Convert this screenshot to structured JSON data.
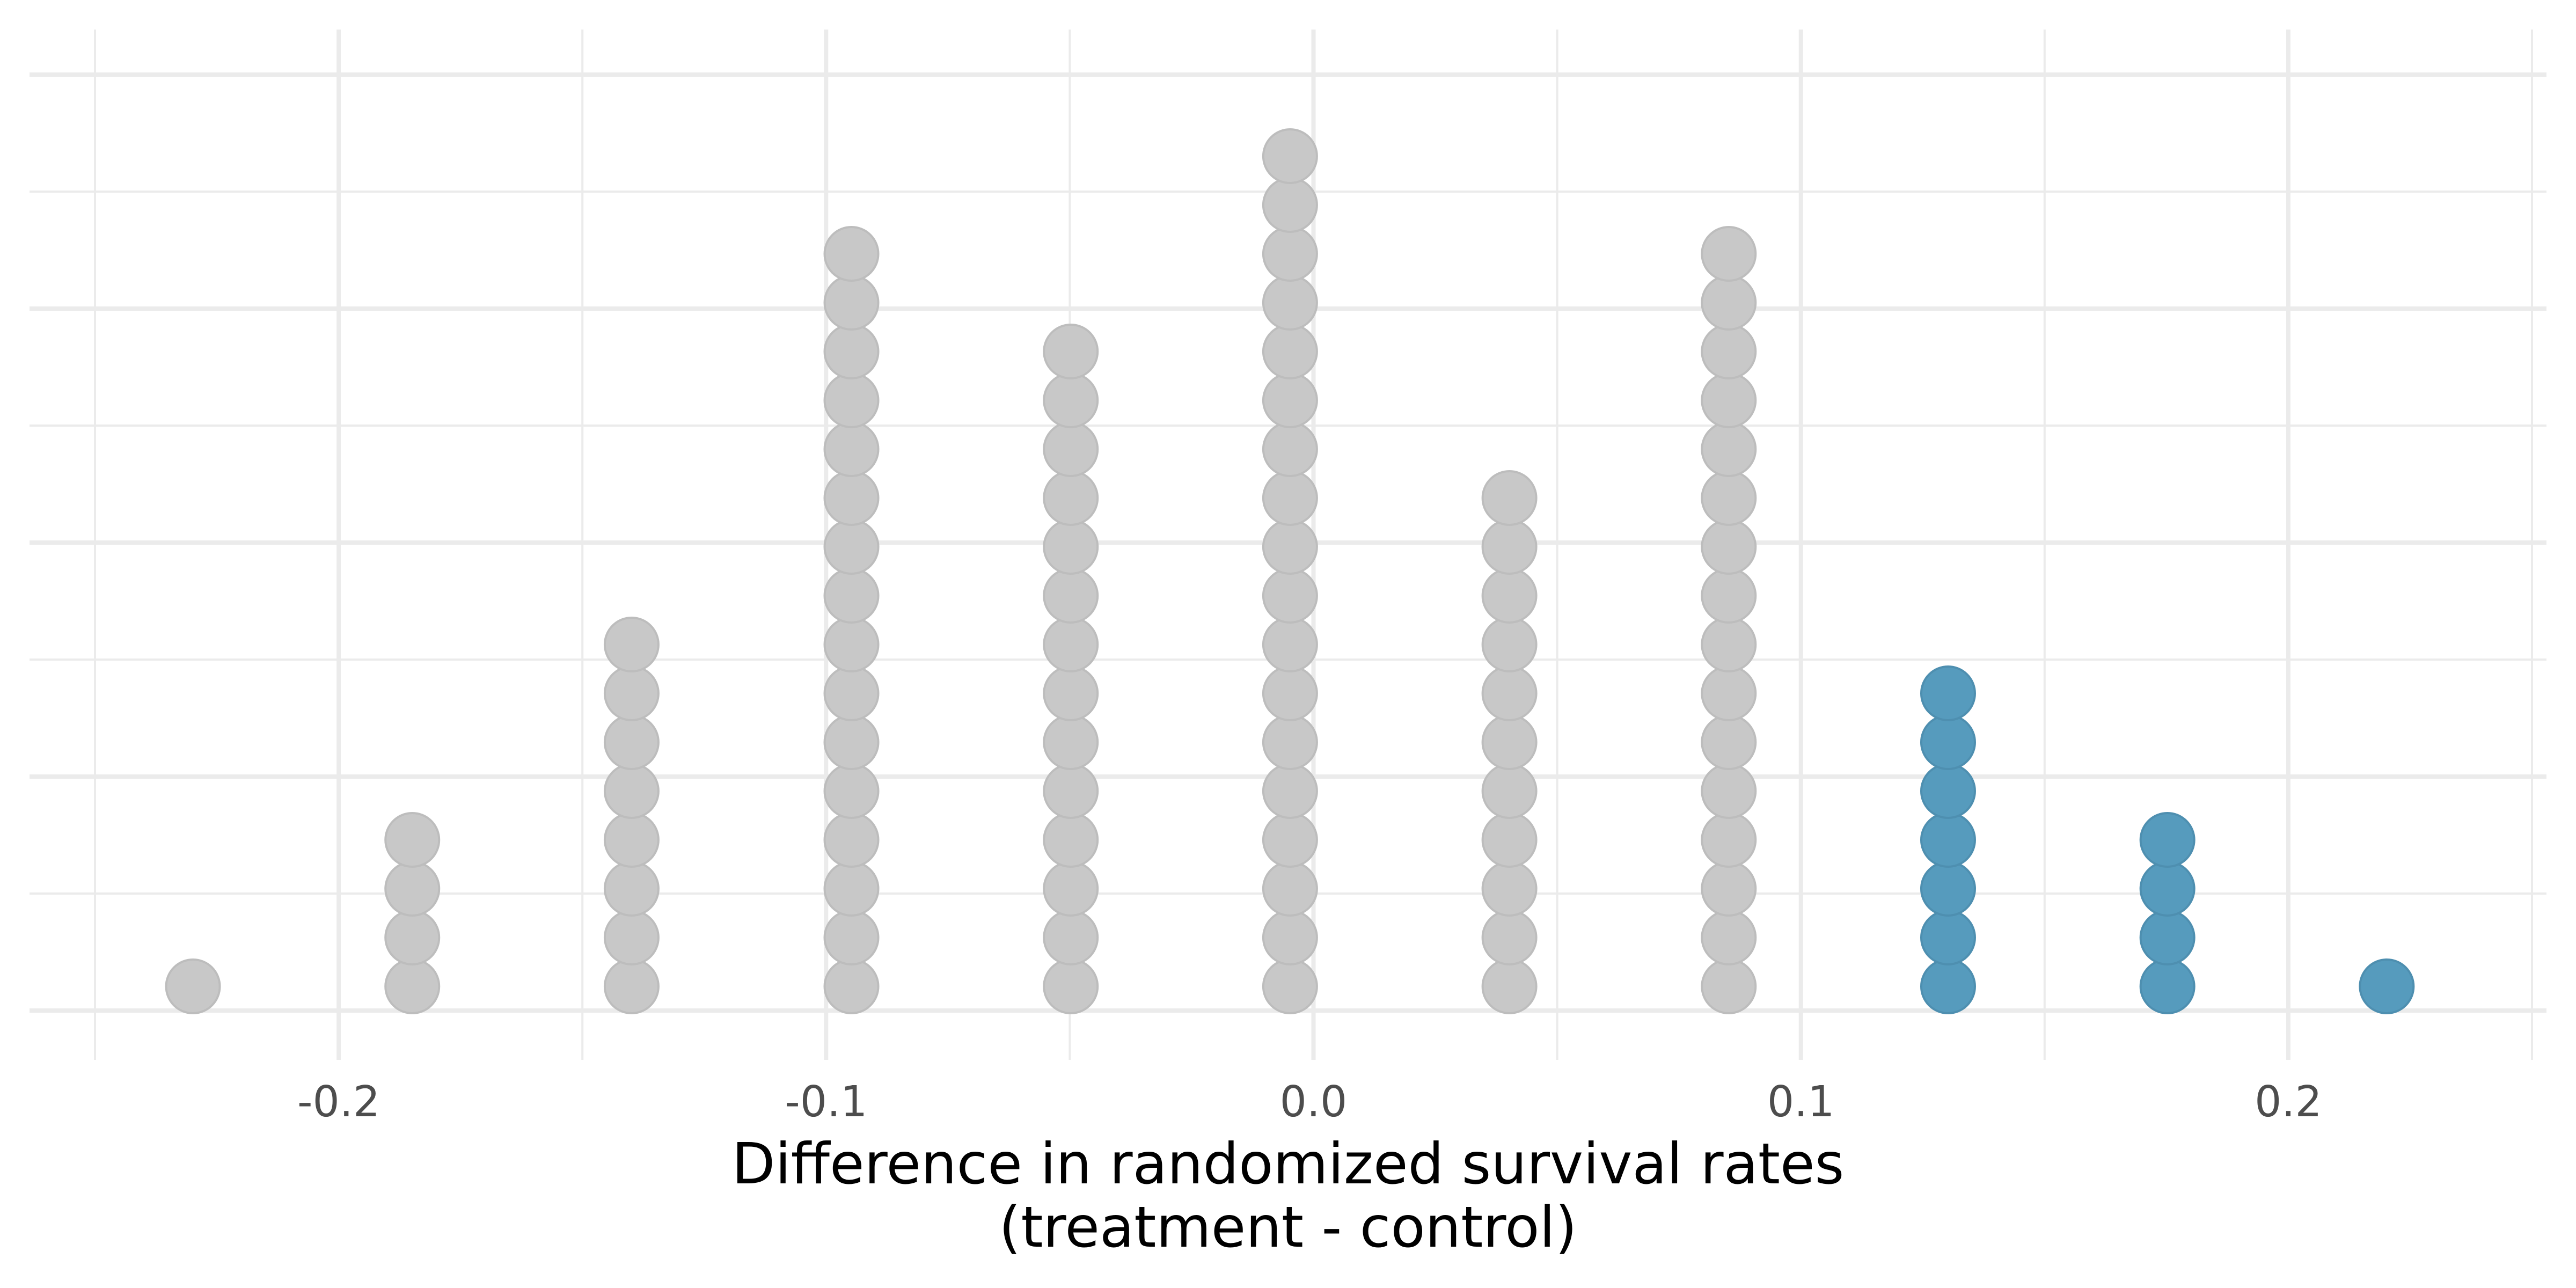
{
  "chart_data": {
    "type": "scatter",
    "subtype": "dot-plot",
    "xlabel_line1": "Difference in randomized survival rates",
    "xlabel_line2": "(treatment - control)",
    "ylabel": "",
    "title": "",
    "xlim": [
      -0.25,
      0.25
    ],
    "x_ticks": [
      -0.2,
      -0.1,
      0.0,
      0.1,
      0.2
    ],
    "x_tick_labels": [
      "-0.2",
      "-0.1",
      "0.0",
      "0.1",
      "0.2"
    ],
    "grid": true,
    "y_axis_labels_shown": false,
    "colors": {
      "default_dot": "#c8c8c8",
      "highlight_dot": "#569bbd",
      "grid": "#ebebeb"
    },
    "stacks": [
      {
        "x": -0.2299,
        "count": 1,
        "highlight": false
      },
      {
        "x": -0.1849,
        "count": 4,
        "highlight": false
      },
      {
        "x": -0.1399,
        "count": 8,
        "highlight": false
      },
      {
        "x": -0.0948,
        "count": 16,
        "highlight": false
      },
      {
        "x": -0.0498,
        "count": 14,
        "highlight": false
      },
      {
        "x": -0.0048,
        "count": 18,
        "highlight": false
      },
      {
        "x": 0.0402,
        "count": 11,
        "highlight": false
      },
      {
        "x": 0.0852,
        "count": 16,
        "highlight": false
      },
      {
        "x": 0.1302,
        "count": 7,
        "highlight": true
      },
      {
        "x": 0.1752,
        "count": 4,
        "highlight": true
      },
      {
        "x": 0.2202,
        "count": 1,
        "highlight": true
      }
    ]
  }
}
